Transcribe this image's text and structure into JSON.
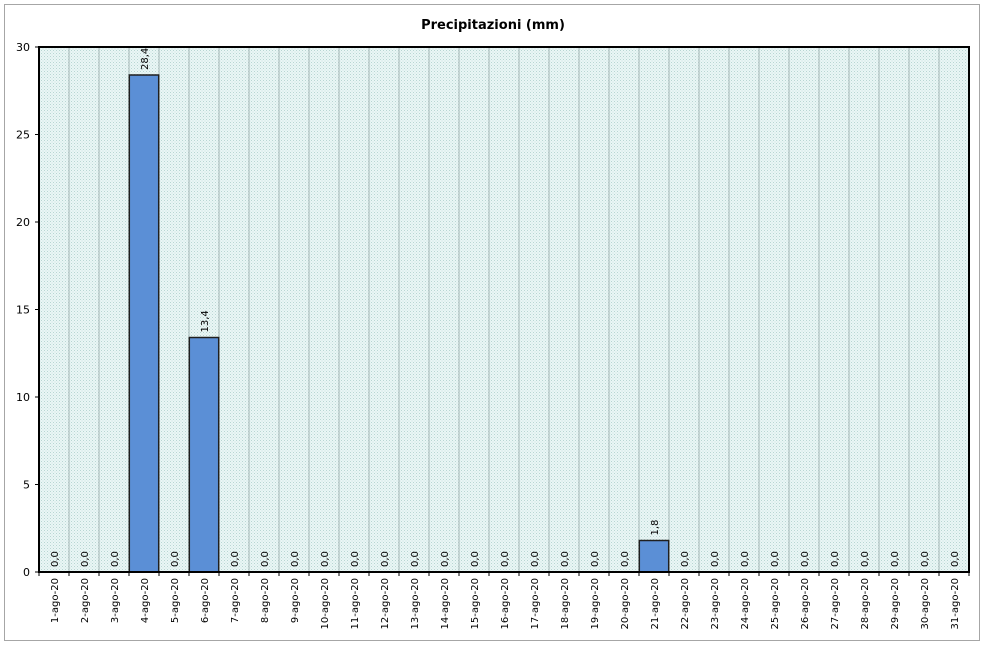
{
  "chart_data": {
    "type": "bar",
    "title": "Precipitazioni (mm)",
    "xlabel": "",
    "ylabel": "",
    "ylim": [
      0,
      30
    ],
    "yticks": [
      0,
      5,
      10,
      15,
      20,
      25,
      30
    ],
    "grid": "vertical",
    "legend": "none",
    "colors": {
      "bar": "#5b8fd6",
      "bar_border": "#1f1f1f",
      "plot_background": "#dcefee",
      "grid": "#a8b8b8"
    },
    "categories": [
      "1-ago-20",
      "2-ago-20",
      "3-ago-20",
      "4-ago-20",
      "5-ago-20",
      "6-ago-20",
      "7-ago-20",
      "8-ago-20",
      "9-ago-20",
      "10-ago-20",
      "11-ago-20",
      "12-ago-20",
      "13-ago-20",
      "14-ago-20",
      "15-ago-20",
      "16-ago-20",
      "17-ago-20",
      "18-ago-20",
      "19-ago-20",
      "20-ago-20",
      "21-ago-20",
      "22-ago-20",
      "23-ago-20",
      "24-ago-20",
      "25-ago-20",
      "26-ago-20",
      "27-ago-20",
      "28-ago-20",
      "29-ago-20",
      "30-ago-20",
      "31-ago-20"
    ],
    "values": [
      0,
      0,
      0,
      28.4,
      0,
      13.4,
      0,
      0,
      0,
      0,
      0,
      0,
      0,
      0,
      0,
      0,
      0,
      0,
      0,
      0,
      1.8,
      0,
      0,
      0,
      0,
      0,
      0,
      0,
      0,
      0,
      0
    ],
    "data_labels": [
      "0,0",
      "0,0",
      "0,0",
      "28,4",
      "0,0",
      "13,4",
      "0,0",
      "0,0",
      "0,0",
      "0,0",
      "0,0",
      "0,0",
      "0,0",
      "0,0",
      "0,0",
      "0,0",
      "0,0",
      "0,0",
      "0,0",
      "0,0",
      "1,8",
      "0,0",
      "0,0",
      "0,0",
      "0,0",
      "0,0",
      "0,0",
      "0,0",
      "0,0",
      "0,0",
      "0,0"
    ]
  }
}
